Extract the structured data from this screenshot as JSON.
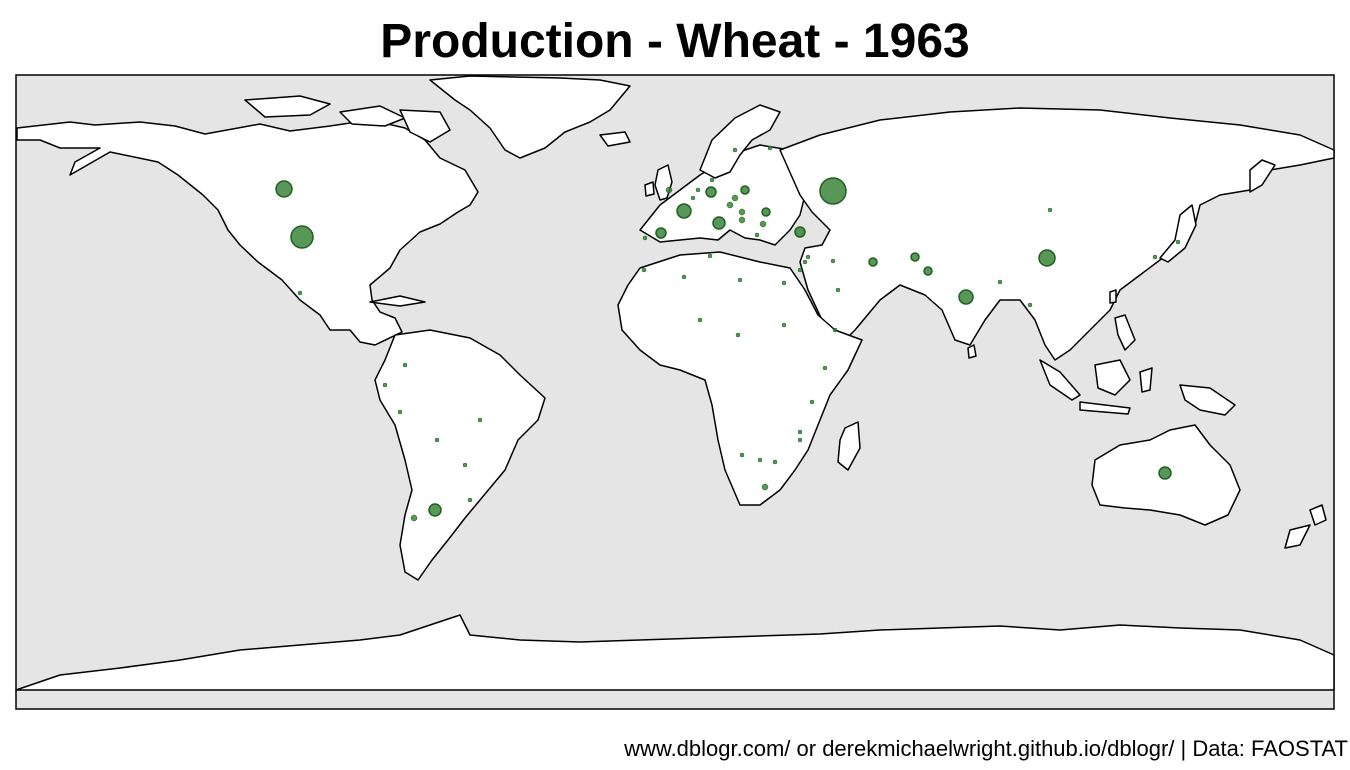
{
  "title": "Production - Wheat - 1963",
  "caption": "www.dblogr.com/ or derekmichaelwright.github.io/dblogr/ | Data: FAOSTAT",
  "colors": {
    "ocean": "#e5e5e5",
    "land": "#ffffff",
    "border": "#000000",
    "marker_fill": "#2e7d2e",
    "marker_stroke": "#1f5f1f"
  },
  "map": {
    "projection": "equirectangular",
    "variable": "wheat production",
    "year": "1963",
    "marker_shape": "circle",
    "marker_opacity": 0.8
  }
}
